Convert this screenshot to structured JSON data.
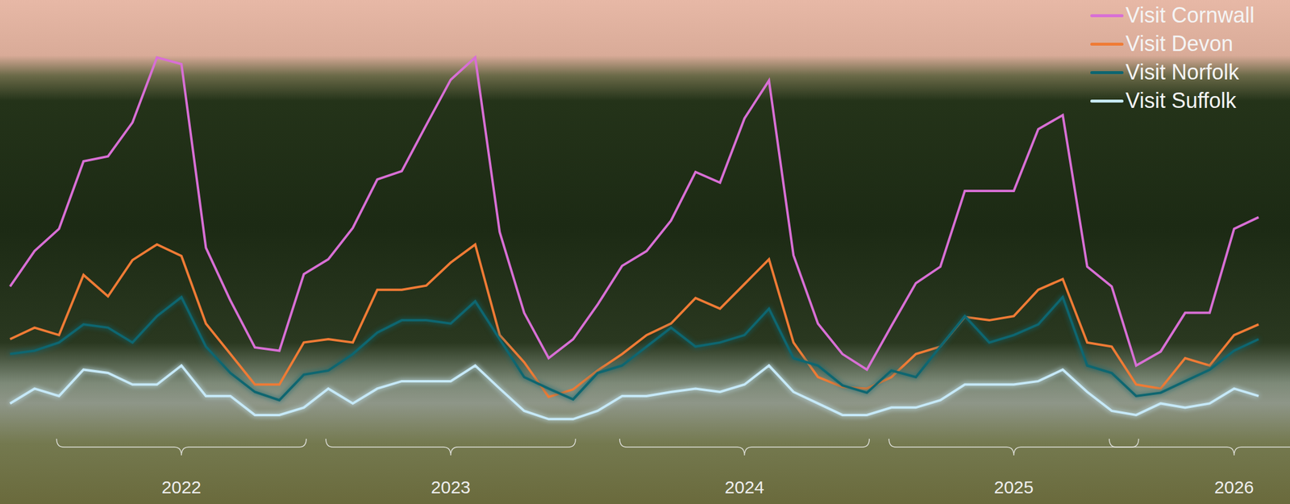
{
  "chart_data": {
    "type": "line",
    "categories": [
      null,
      null,
      null,
      null,
      null,
      null,
      null,
      "2022",
      null,
      null,
      null,
      null,
      null,
      null,
      null,
      null,
      null,
      null,
      "2023",
      null,
      null,
      null,
      null,
      null,
      null,
      null,
      null,
      null,
      null,
      null,
      "2024",
      null,
      null,
      null,
      null,
      null,
      null,
      null,
      null,
      null,
      null,
      "2025",
      null,
      null,
      null,
      null,
      null,
      null,
      null,
      null,
      "2026",
      null
    ],
    "series": [
      {
        "name": "Visit Cornwall",
        "color": "#d86fd5",
        "values": [
          182,
          225,
          252,
          334,
          340,
          381,
          460,
          452,
          229,
          165,
          108,
          104,
          197,
          215,
          253,
          312,
          322,
          378,
          433,
          460,
          248,
          150,
          95,
          118,
          160,
          207,
          225,
          262,
          321,
          308,
          386,
          432,
          220,
          137,
          100,
          81,
          134,
          186,
          206,
          298,
          298,
          298,
          373,
          390,
          206,
          182,
          86,
          103,
          150,
          150,
          252,
          266
        ]
      },
      {
        "name": "Visit Devon",
        "color": "#ef7b35",
        "values": [
          118,
          132,
          123,
          196,
          170,
          214,
          233,
          219,
          137,
          100,
          63,
          63,
          114,
          118,
          114,
          178,
          178,
          183,
          211,
          233,
          123,
          90,
          48,
          57,
          80,
          100,
          123,
          137,
          168,
          155,
          185,
          215,
          114,
          72,
          60,
          58,
          72,
          100,
          109,
          145,
          141,
          146,
          178,
          191,
          114,
          109,
          63,
          58,
          95,
          86,
          123,
          136
        ]
      },
      {
        "name": "Visit Norfolk",
        "color": "#0e6670",
        "values": [
          100,
          104,
          114,
          136,
          132,
          114,
          146,
          169,
          109,
          77,
          54,
          44,
          75,
          80,
          100,
          126,
          141,
          141,
          137,
          164,
          118,
          72,
          58,
          45,
          77,
          86,
          109,
          132,
          109,
          114,
          123,
          155,
          95,
          86,
          62,
          53,
          80,
          72,
          109,
          146,
          114,
          123,
          136,
          169,
          86,
          77,
          49,
          53,
          67,
          81,
          104,
          118
        ]
      },
      {
        "name": "Visit Suffolk",
        "color": "#c6e9f8",
        "values": [
          40,
          58,
          49,
          81,
          77,
          63,
          63,
          86,
          49,
          49,
          26,
          26,
          35,
          58,
          40,
          58,
          67,
          67,
          67,
          86,
          58,
          31,
          21,
          21,
          31,
          49,
          49,
          54,
          58,
          54,
          63,
          86,
          54,
          40,
          26,
          26,
          35,
          35,
          44,
          63,
          63,
          63,
          67,
          81,
          54,
          31,
          26,
          40,
          35,
          40,
          58,
          49
        ]
      }
    ],
    "ylim": [
      0,
      470
    ],
    "tick_labels": "x",
    "legend": "upper right",
    "grid": false
  }
}
